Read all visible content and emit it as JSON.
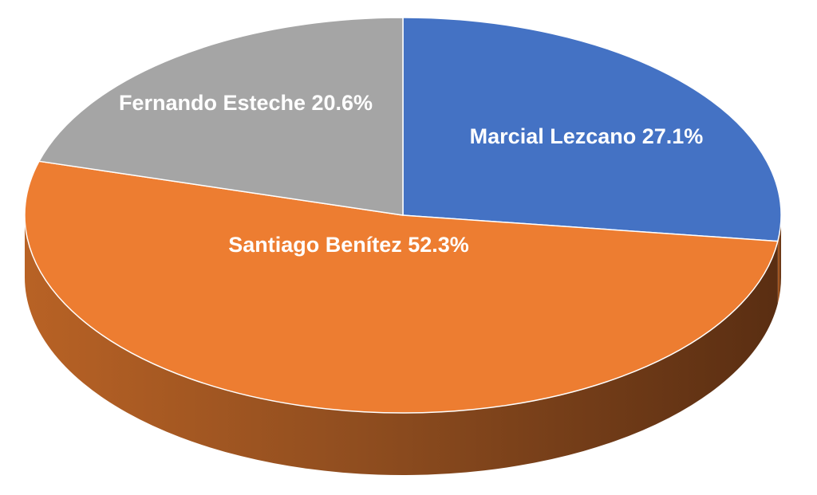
{
  "chart_data": {
    "type": "pie",
    "style": "3d",
    "title": "",
    "legend": "none",
    "slices": [
      {
        "name": "Marcial Lezcano",
        "value": 27.1,
        "label": "Marcial Lezcano  27.1%",
        "color": "#4472c4"
      },
      {
        "name": "Santiago Benítez",
        "value": 52.3,
        "label": "Santiago Benítez  52.3%",
        "color": "#ed7d31"
      },
      {
        "name": "Fernando Esteche",
        "value": 20.6,
        "label": "Fernando Esteche 20.6%",
        "color": "#a5a5a5"
      }
    ]
  }
}
